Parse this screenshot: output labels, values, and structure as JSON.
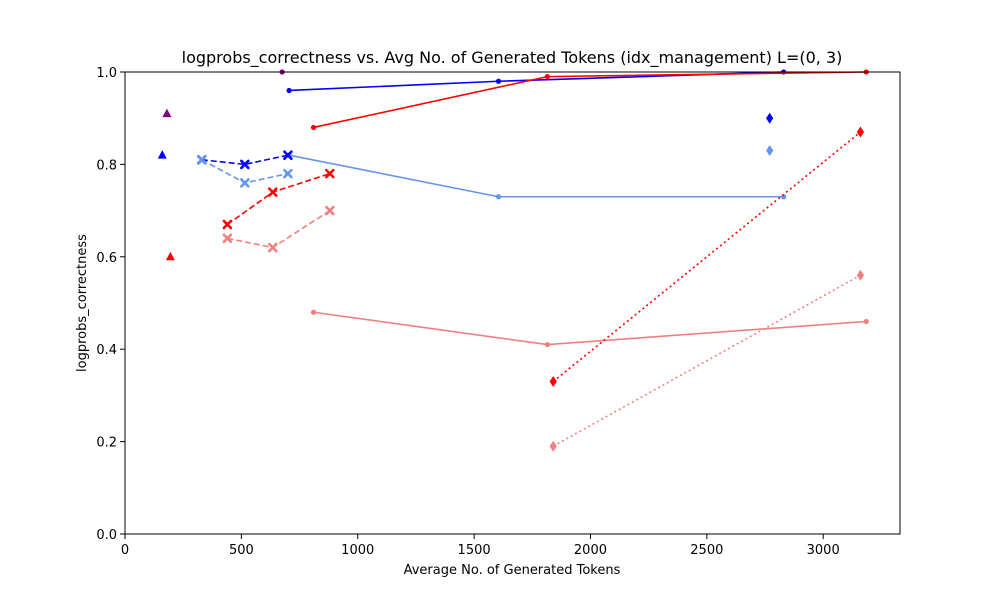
{
  "chart_data": {
    "type": "line",
    "title": "logprobs_correctness vs. Avg No. of Generated Tokens (idx_management) L=(0, 3)",
    "xlabel": "Average No. of Generated Tokens",
    "ylabel": "logprobs_correctness",
    "xlim": [
      0,
      3330
    ],
    "ylim": [
      0,
      1.0
    ],
    "xticks": [
      0,
      500,
      1000,
      1500,
      2000,
      2500,
      3000
    ],
    "xtick_labels": [
      "0",
      "500",
      "1000",
      "1500",
      "2000",
      "2500",
      "3000"
    ],
    "yticks": [
      0,
      0.2,
      0.4,
      0.6,
      0.8,
      1.0
    ],
    "ytick_labels": [
      "0.0",
      "0.2",
      "0.4",
      "0.6",
      "0.8",
      "1.0"
    ],
    "grid": false,
    "series": [
      {
        "color": "#0000ff",
        "linestyle": "solid",
        "marker": "dot",
        "points": [
          [
            705,
            0.96
          ],
          [
            1605,
            0.98
          ],
          [
            2830,
            1.0
          ]
        ]
      },
      {
        "color": "#ff0000",
        "linestyle": "solid",
        "marker": "dot",
        "points": [
          [
            810,
            0.88
          ],
          [
            1815,
            0.99
          ],
          [
            3185,
            1.0
          ]
        ]
      },
      {
        "color": "#6495ed",
        "linestyle": "solid",
        "marker": "dot",
        "points": [
          [
            705,
            0.82
          ],
          [
            1605,
            0.73
          ],
          [
            2830,
            0.73
          ]
        ]
      },
      {
        "color": "#f08080",
        "linestyle": "solid",
        "marker": "dot",
        "points": [
          [
            810,
            0.48
          ],
          [
            1815,
            0.41
          ],
          [
            3185,
            0.46
          ]
        ]
      },
      {
        "color": "#0000ff",
        "linestyle": "dashed",
        "marker": "x",
        "points": [
          [
            330,
            0.81
          ],
          [
            515,
            0.8
          ],
          [
            700,
            0.82
          ]
        ]
      },
      {
        "color": "#6495ed",
        "linestyle": "dashed",
        "marker": "x",
        "points": [
          [
            330,
            0.81
          ],
          [
            515,
            0.76
          ],
          [
            700,
            0.78
          ]
        ]
      },
      {
        "color": "#ff0000",
        "linestyle": "dashed",
        "marker": "x",
        "points": [
          [
            440,
            0.67
          ],
          [
            635,
            0.74
          ],
          [
            880,
            0.78
          ]
        ]
      },
      {
        "color": "#f08080",
        "linestyle": "dashed",
        "marker": "x",
        "points": [
          [
            440,
            0.64
          ],
          [
            635,
            0.62
          ],
          [
            880,
            0.7
          ]
        ]
      },
      {
        "color": "#ff0000",
        "linestyle": "dotted",
        "marker": "diamond",
        "points": [
          [
            1840,
            0.33
          ],
          [
            3160,
            0.87
          ]
        ]
      },
      {
        "color": "#f08080",
        "linestyle": "dotted",
        "marker": "diamond",
        "points": [
          [
            1840,
            0.19
          ],
          [
            3160,
            0.56
          ]
        ]
      },
      {
        "color": "#0000ff",
        "linestyle": "none",
        "marker": "diamond",
        "points": [
          [
            2770,
            0.9
          ]
        ]
      },
      {
        "color": "#6495ed",
        "linestyle": "none",
        "marker": "diamond",
        "points": [
          [
            2770,
            0.83
          ]
        ]
      },
      {
        "color": "#0000ff",
        "linestyle": "none",
        "marker": "triangle",
        "points": [
          [
            160,
            0.82
          ]
        ]
      },
      {
        "color": "#800080",
        "linestyle": "none",
        "marker": "triangle",
        "points": [
          [
            180,
            0.91
          ]
        ]
      },
      {
        "color": "#ff0000",
        "linestyle": "none",
        "marker": "triangle",
        "points": [
          [
            195,
            0.6
          ]
        ]
      },
      {
        "color": "#800080",
        "linestyle": "none",
        "marker": "dot",
        "points": [
          [
            675,
            1.0
          ]
        ]
      }
    ]
  }
}
